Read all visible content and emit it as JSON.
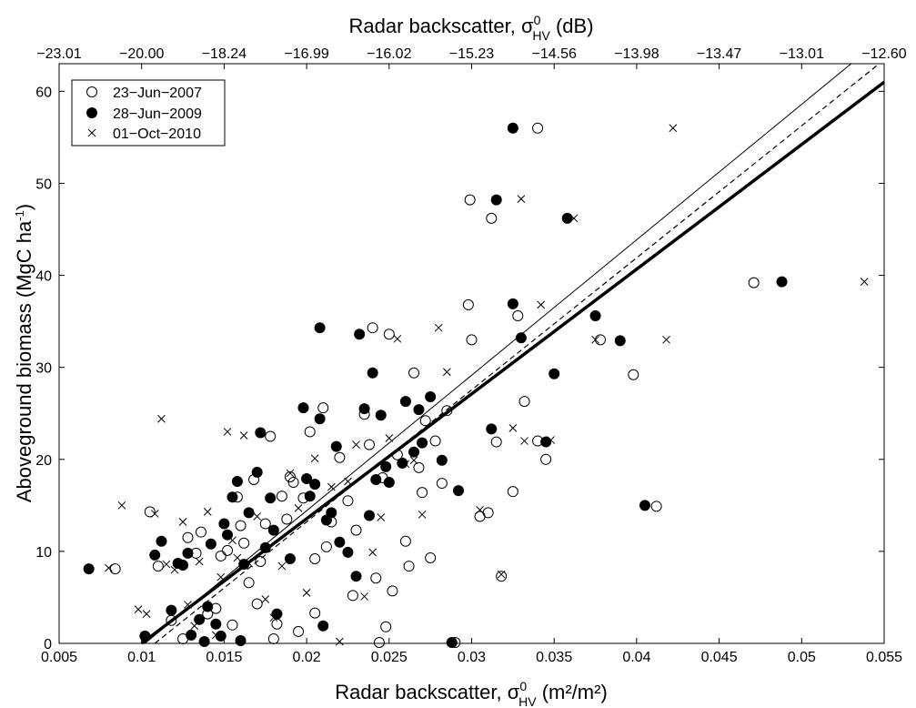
{
  "chart_data": {
    "type": "scatter",
    "x": {
      "label": "Radar backscatter, σ",
      "sup": "0",
      "sub": "HV",
      "unit": "(m²/m²)",
      "lim": [
        0.005,
        0.055
      ],
      "ticks": [
        "0.005",
        "0.01",
        "0.015",
        "0.02",
        "0.025",
        "0.03",
        "0.035",
        "0.04",
        "0.045",
        "0.05",
        "0.055"
      ]
    },
    "x_top": {
      "label": "Radar backscatter, σ",
      "sup": "0",
      "sub": "HV",
      "unit": "(dB)",
      "ticks": [
        "−23.01",
        "−20.00",
        "−18.24",
        "−16.99",
        "−16.02",
        "−15.23",
        "−14.56",
        "−13.98",
        "−13.47",
        "−13.01",
        "−12.60"
      ]
    },
    "y": {
      "label": "Aboveground biomass (MgC ha",
      "sup": "-1",
      "close": ")",
      "lim": [
        0,
        63
      ],
      "ticks": [
        0,
        10,
        20,
        30,
        40,
        50,
        60
      ]
    },
    "legend_position": "top-left",
    "series": [
      {
        "name": "23−Jun−2007",
        "marker": "open-circle",
        "points": [
          [
            0.0084,
            8.1
          ],
          [
            0.0105,
            14.3
          ],
          [
            0.011,
            8.4
          ],
          [
            0.0118,
            2.5
          ],
          [
            0.0125,
            0.5
          ],
          [
            0.0128,
            11.5
          ],
          [
            0.0133,
            9.8
          ],
          [
            0.0136,
            12.1
          ],
          [
            0.014,
            3.2
          ],
          [
            0.0145,
            3.8
          ],
          [
            0.0148,
            9.5
          ],
          [
            0.0152,
            10.1
          ],
          [
            0.0155,
            2.0
          ],
          [
            0.0158,
            15.9
          ],
          [
            0.016,
            12.8
          ],
          [
            0.0162,
            10.9
          ],
          [
            0.0165,
            6.6
          ],
          [
            0.0168,
            17.8
          ],
          [
            0.017,
            4.3
          ],
          [
            0.0172,
            8.9
          ],
          [
            0.0175,
            13.0
          ],
          [
            0.0178,
            22.5
          ],
          [
            0.018,
            0.5
          ],
          [
            0.0182,
            2.1
          ],
          [
            0.0185,
            16.0
          ],
          [
            0.0188,
            13.5
          ],
          [
            0.019,
            18.1
          ],
          [
            0.0192,
            17.5
          ],
          [
            0.0195,
            1.3
          ],
          [
            0.0198,
            15.8
          ],
          [
            0.0202,
            23.0
          ],
          [
            0.0205,
            9.2
          ],
          [
            0.0205,
            3.3
          ],
          [
            0.021,
            25.6
          ],
          [
            0.0212,
            10.5
          ],
          [
            0.0215,
            13.2
          ],
          [
            0.022,
            20.2
          ],
          [
            0.0225,
            15.5
          ],
          [
            0.0228,
            5.2
          ],
          [
            0.023,
            12.3
          ],
          [
            0.0235,
            24.9
          ],
          [
            0.0238,
            21.6
          ],
          [
            0.024,
            34.3
          ],
          [
            0.0242,
            7.1
          ],
          [
            0.0244,
            0.1
          ],
          [
            0.0246,
            18.0
          ],
          [
            0.0248,
            1.8
          ],
          [
            0.025,
            33.6
          ],
          [
            0.0252,
            5.7
          ],
          [
            0.0255,
            20.5
          ],
          [
            0.026,
            11.1
          ],
          [
            0.0262,
            8.4
          ],
          [
            0.0265,
            29.4
          ],
          [
            0.0268,
            19.1
          ],
          [
            0.027,
            16.4
          ],
          [
            0.0272,
            24.2
          ],
          [
            0.0275,
            9.3
          ],
          [
            0.0278,
            22.0
          ],
          [
            0.0282,
            17.4
          ],
          [
            0.0285,
            25.3
          ],
          [
            0.029,
            0.1
          ],
          [
            0.0298,
            36.8
          ],
          [
            0.0299,
            48.2
          ],
          [
            0.03,
            33.0
          ],
          [
            0.0305,
            13.8
          ],
          [
            0.031,
            14.2
          ],
          [
            0.0312,
            46.2
          ],
          [
            0.0315,
            21.9
          ],
          [
            0.0318,
            7.3
          ],
          [
            0.0325,
            16.5
          ],
          [
            0.0328,
            35.6
          ],
          [
            0.0332,
            26.3
          ],
          [
            0.034,
            56.0
          ],
          [
            0.034,
            22.0
          ],
          [
            0.0345,
            20.0
          ],
          [
            0.0378,
            33.0
          ],
          [
            0.0398,
            29.2
          ],
          [
            0.0412,
            14.9
          ],
          [
            0.0471,
            39.2
          ]
        ]
      },
      {
        "name": "28−Jun−2009",
        "marker": "filled-circle",
        "points": [
          [
            0.0068,
            8.1
          ],
          [
            0.0102,
            0.8
          ],
          [
            0.0108,
            9.6
          ],
          [
            0.0112,
            11.1
          ],
          [
            0.0118,
            3.6
          ],
          [
            0.0122,
            8.7
          ],
          [
            0.0125,
            8.5
          ],
          [
            0.0128,
            9.8
          ],
          [
            0.013,
            0.9
          ],
          [
            0.0135,
            2.6
          ],
          [
            0.0138,
            0.2
          ],
          [
            0.014,
            4.0
          ],
          [
            0.0142,
            10.8
          ],
          [
            0.0145,
            2.1
          ],
          [
            0.0148,
            0.8
          ],
          [
            0.015,
            13.0
          ],
          [
            0.0152,
            11.8
          ],
          [
            0.0155,
            15.9
          ],
          [
            0.0158,
            17.6
          ],
          [
            0.016,
            0.3
          ],
          [
            0.0162,
            8.6
          ],
          [
            0.0165,
            14.2
          ],
          [
            0.017,
            18.6
          ],
          [
            0.0172,
            22.9
          ],
          [
            0.0175,
            10.4
          ],
          [
            0.0178,
            15.8
          ],
          [
            0.018,
            12.3
          ],
          [
            0.0182,
            3.2
          ],
          [
            0.019,
            9.2
          ],
          [
            0.0198,
            25.6
          ],
          [
            0.02,
            17.9
          ],
          [
            0.0202,
            16.0
          ],
          [
            0.0205,
            17.3
          ],
          [
            0.0208,
            34.3
          ],
          [
            0.0208,
            24.4
          ],
          [
            0.021,
            1.9
          ],
          [
            0.0212,
            13.4
          ],
          [
            0.0215,
            14.2
          ],
          [
            0.0218,
            21.4
          ],
          [
            0.022,
            11.0
          ],
          [
            0.0225,
            9.9
          ],
          [
            0.023,
            7.3
          ],
          [
            0.0232,
            33.6
          ],
          [
            0.0235,
            25.5
          ],
          [
            0.0238,
            13.9
          ],
          [
            0.024,
            29.4
          ],
          [
            0.0242,
            17.8
          ],
          [
            0.0245,
            24.8
          ],
          [
            0.0248,
            19.2
          ],
          [
            0.025,
            17.5
          ],
          [
            0.0258,
            19.6
          ],
          [
            0.026,
            26.3
          ],
          [
            0.0265,
            20.8
          ],
          [
            0.0268,
            25.4
          ],
          [
            0.027,
            21.8
          ],
          [
            0.0275,
            26.8
          ],
          [
            0.0282,
            19.9
          ],
          [
            0.0288,
            0.1
          ],
          [
            0.0292,
            16.6
          ],
          [
            0.0312,
            23.3
          ],
          [
            0.0315,
            48.2
          ],
          [
            0.0325,
            56.0
          ],
          [
            0.0325,
            36.9
          ],
          [
            0.033,
            33.2
          ],
          [
            0.0345,
            21.9
          ],
          [
            0.035,
            29.3
          ],
          [
            0.0358,
            46.2
          ],
          [
            0.0375,
            35.6
          ],
          [
            0.039,
            32.9
          ],
          [
            0.0405,
            15.0
          ],
          [
            0.0488,
            39.3
          ]
        ]
      },
      {
        "name": "01−Oct−2010",
        "marker": "cross",
        "points": [
          [
            0.008,
            8.2
          ],
          [
            0.0088,
            15.0
          ],
          [
            0.0098,
            3.7
          ],
          [
            0.0103,
            3.2
          ],
          [
            0.0108,
            14.1
          ],
          [
            0.0112,
            24.4
          ],
          [
            0.0115,
            8.6
          ],
          [
            0.012,
            8.0
          ],
          [
            0.0125,
            13.2
          ],
          [
            0.0128,
            4.2
          ],
          [
            0.0132,
            1.9
          ],
          [
            0.0135,
            8.9
          ],
          [
            0.014,
            14.3
          ],
          [
            0.0145,
            0.9
          ],
          [
            0.0148,
            7.2
          ],
          [
            0.0152,
            23.0
          ],
          [
            0.0155,
            11.2
          ],
          [
            0.0158,
            9.3
          ],
          [
            0.0162,
            22.6
          ],
          [
            0.0165,
            8.7
          ],
          [
            0.017,
            13.8
          ],
          [
            0.0175,
            4.8
          ],
          [
            0.018,
            2.8
          ],
          [
            0.0185,
            8.4
          ],
          [
            0.019,
            18.5
          ],
          [
            0.0195,
            14.7
          ],
          [
            0.02,
            5.5
          ],
          [
            0.0205,
            20.1
          ],
          [
            0.021,
            1.9
          ],
          [
            0.0215,
            17.0
          ],
          [
            0.022,
            0.2
          ],
          [
            0.0225,
            17.6
          ],
          [
            0.023,
            21.6
          ],
          [
            0.0235,
            5.1
          ],
          [
            0.024,
            9.9
          ],
          [
            0.0245,
            13.7
          ],
          [
            0.025,
            22.3
          ],
          [
            0.0255,
            33.1
          ],
          [
            0.026,
            19.5
          ],
          [
            0.0265,
            19.9
          ],
          [
            0.027,
            14.0
          ],
          [
            0.0275,
            26.8
          ],
          [
            0.028,
            34.3
          ],
          [
            0.0285,
            29.5
          ],
          [
            0.0305,
            14.5
          ],
          [
            0.0318,
            7.5
          ],
          [
            0.0325,
            23.4
          ],
          [
            0.033,
            48.3
          ],
          [
            0.0332,
            22.0
          ],
          [
            0.0342,
            36.8
          ],
          [
            0.0348,
            22.1
          ],
          [
            0.0362,
            46.2
          ],
          [
            0.0375,
            33.0
          ],
          [
            0.0418,
            33.0
          ],
          [
            0.0422,
            56.0
          ],
          [
            0.0538,
            39.3
          ]
        ]
      }
    ],
    "lines": [
      {
        "style": "thick-solid",
        "x": [
          0.01,
          0.055
        ],
        "y": [
          0,
          61
        ]
      },
      {
        "style": "thin-solid",
        "x": [
          0.0102,
          0.053
        ],
        "y": [
          0,
          63
        ]
      },
      {
        "style": "dashed",
        "x": [
          0.0108,
          0.0547
        ],
        "y": [
          0,
          63
        ]
      }
    ]
  }
}
